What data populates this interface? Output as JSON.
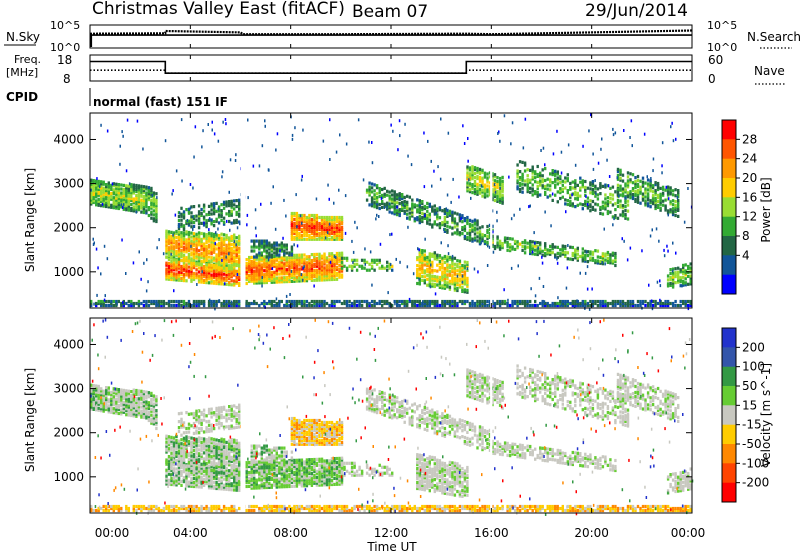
{
  "header": {
    "title": "Christmas Valley East (fitACF)",
    "beam": "Beam 07",
    "date": "29/Jun/2014"
  },
  "colors": {
    "axis": "#000000",
    "dot_black": "#000000",
    "background": "#ffffff"
  },
  "panels": {
    "nsky": {
      "left_label": "N.Sky",
      "left_ticks": [
        "10^5",
        "10^0"
      ],
      "right_ticks": [
        "10^5",
        "10^0"
      ],
      "right_label": "N.Search"
    },
    "freq": {
      "left_label_top": "Freq.",
      "left_label_bottom": "[MHz]",
      "left_ticks": [
        "18",
        "8"
      ],
      "right_ticks": [
        "60",
        "0"
      ],
      "right_label": "Nave"
    },
    "cpid": {
      "label": "CPID",
      "text": "normal (fast) 151 IF"
    }
  },
  "chart_data": [
    {
      "type": "line",
      "title": "N.Sky / N.Search",
      "x_label": "Time UT",
      "series": [
        {
          "name": "N.Sky",
          "style": "dots",
          "x": [
            0.0,
            3.0,
            3.0,
            6.0,
            6.1,
            10.0,
            15.0,
            16.0,
            16.0,
            20.0,
            24.0
          ],
          "y": [
            3.1,
            3.2,
            3.7,
            3.4,
            3.0,
            3.0,
            3.1,
            3.0,
            3.0,
            3.4,
            3.8
          ]
        },
        {
          "name": "N.Search",
          "style": "solid",
          "x": [
            0.0,
            0.05,
            0.05,
            24.0
          ],
          "y": [
            0.4,
            0.4,
            2.8,
            2.8
          ]
        }
      ],
      "ylim": [
        0,
        5
      ]
    },
    {
      "type": "line",
      "title": "Freq. / Nave",
      "series": [
        {
          "name": "Freq. [MHz]",
          "style": "solid",
          "x": [
            0.0,
            3.0,
            3.0,
            15.0,
            15.0,
            24.0
          ],
          "y": [
            15.5,
            15.5,
            11.0,
            11.0,
            15.5,
            15.5
          ]
        },
        {
          "name": "Nave",
          "style": "dotted",
          "x": [
            0.0,
            3.0,
            3.0,
            15.0,
            15.0,
            24.0
          ],
          "y": [
            25,
            25,
            18,
            18,
            25,
            25
          ]
        }
      ],
      "ylim": [
        8,
        18
      ],
      "y2lim": [
        0,
        60
      ]
    },
    {
      "type": "heatmap",
      "title": "Power",
      "xlabel": "Time UT",
      "ylabel": "Slant Range [km]",
      "colorbar_label": "Power [dB]",
      "colorbar_ticks": [
        "28",
        "24",
        "20",
        "16",
        "12",
        "8",
        "4"
      ],
      "colorbar_colors": [
        "#ff0000",
        "#ff5500",
        "#ff9900",
        "#ffcc00",
        "#99dd33",
        "#33aa33",
        "#226644",
        "#115599",
        "#0000ff"
      ],
      "x_ticks": [
        "00:00",
        "04:00",
        "08:00",
        "12:00",
        "16:00",
        "20:00",
        "00:00"
      ],
      "y_ticks": [
        "1000",
        "2000",
        "3000",
        "4000"
      ],
      "xlim": [
        0,
        24
      ],
      "ylim": [
        180,
        4600
      ]
    },
    {
      "type": "heatmap",
      "title": "Velocity",
      "xlabel": "Time UT",
      "ylabel": "Slant Range [km]",
      "colorbar_label": "Velocity [m s^-1]",
      "colorbar_ticks": [
        "200",
        "100",
        "50",
        "15",
        "-15",
        "-50",
        "-100",
        "-200"
      ],
      "colorbar_colors": [
        "#2233cc",
        "#3355aa",
        "#339944",
        "#66cc33",
        "#c8c8c0",
        "#ffcc00",
        "#ff8800",
        "#ff4400",
        "#ff0000"
      ],
      "x_ticks": [
        "00:00",
        "04:00",
        "08:00",
        "12:00",
        "16:00",
        "20:00",
        "00:00"
      ],
      "y_ticks": [
        "1000",
        "2000",
        "3000",
        "4000"
      ],
      "xlim": [
        0,
        24
      ],
      "ylim": [
        180,
        4600
      ]
    }
  ],
  "axis": {
    "x_label": "Time UT",
    "y_label": "Slant Range [km]"
  }
}
